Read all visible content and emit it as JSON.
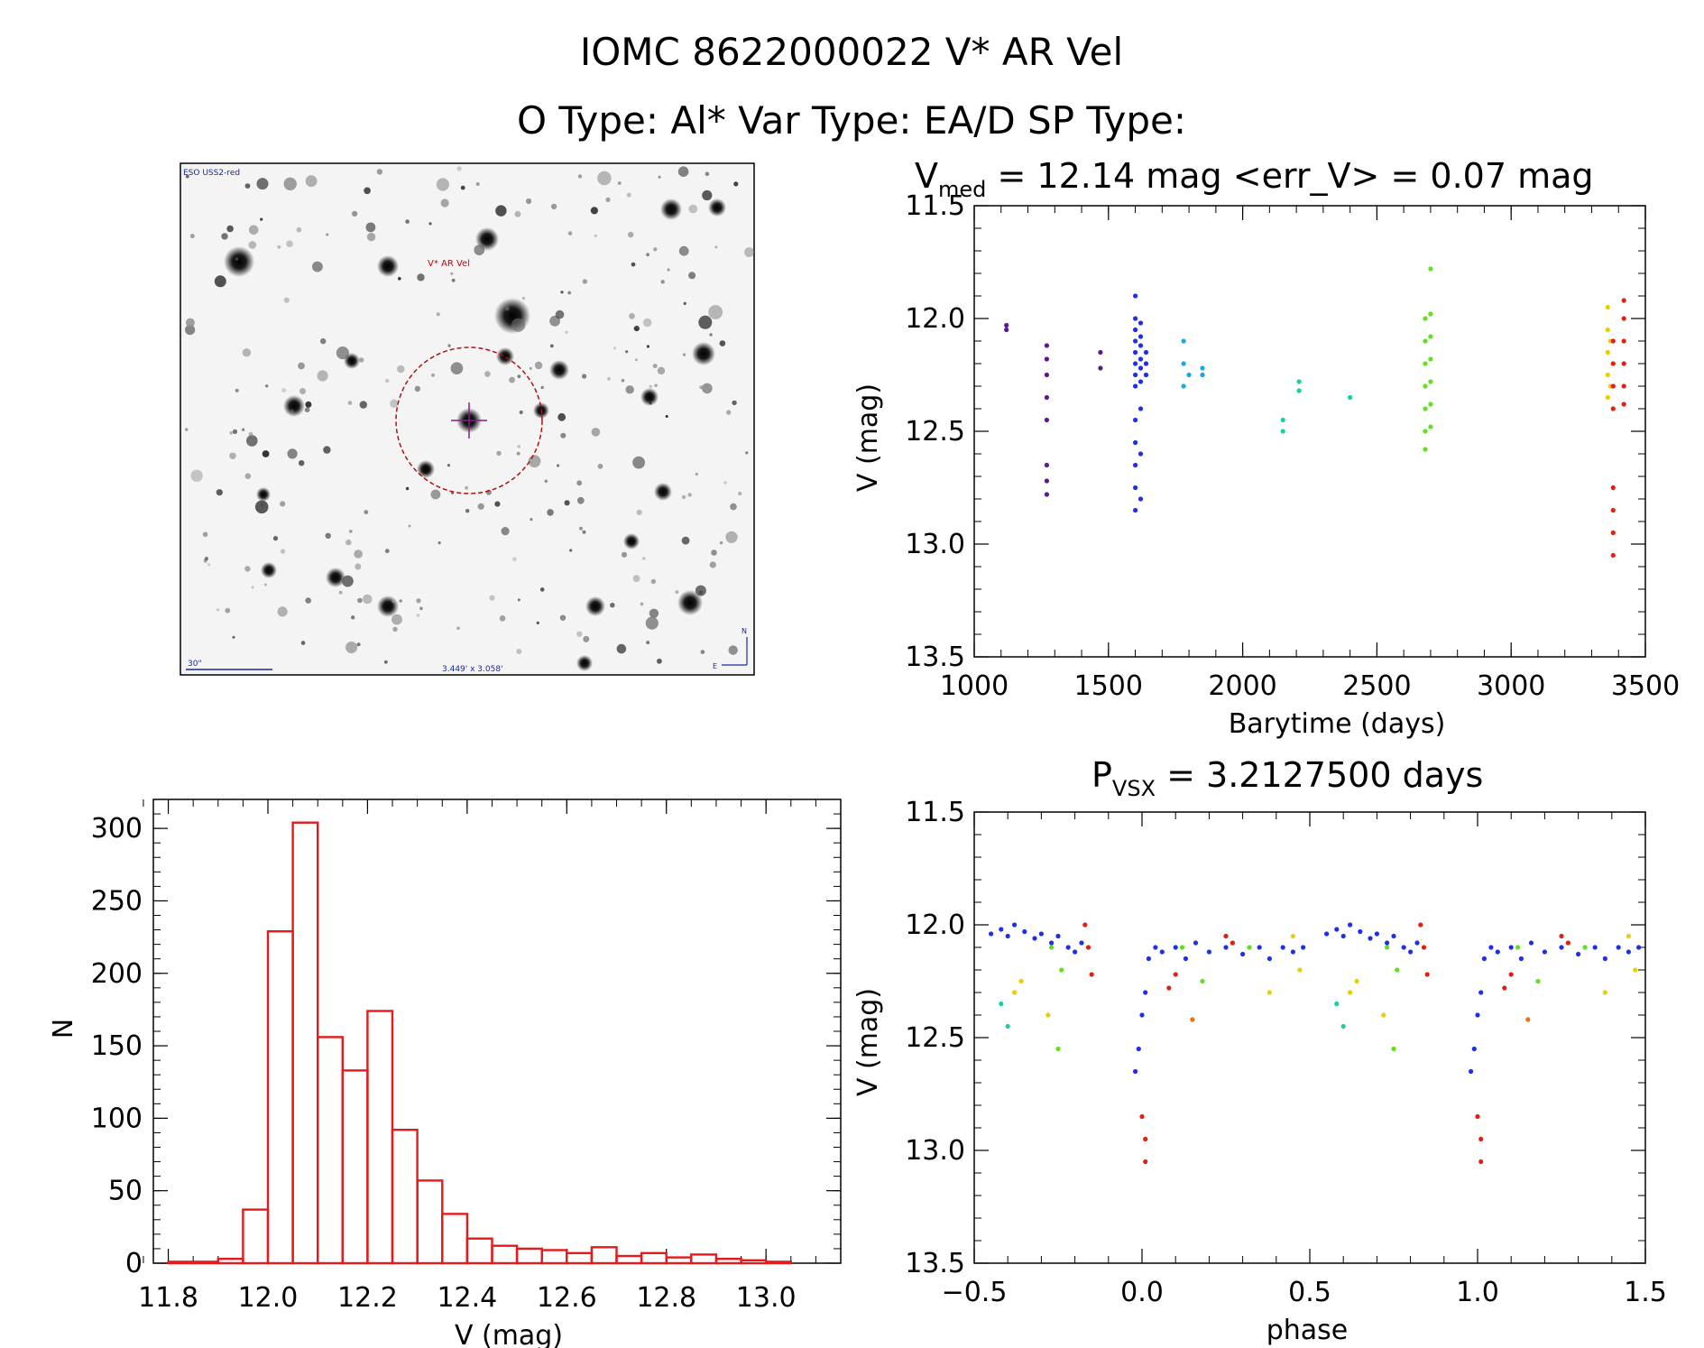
{
  "header": {
    "line1": "IOMC 8622000022    V* AR Vel",
    "line2": "O Type: Al*  Var Type: EA/D  SP Type:"
  },
  "finder": {
    "survey_label": "ESO USS2-red",
    "target_label": "V* AR Vel",
    "scale_label": "30\"",
    "size_label": "3.449' x 3.058'",
    "north_label": "N",
    "east_label": "E"
  },
  "chart_data": [
    {
      "id": "lightcurve",
      "type": "scatter",
      "title_main": "V",
      "title_sub": "med",
      "title_rest": " = 12.14 mag <err_V> = 0.07 mag",
      "xlabel": "Barytime (days)",
      "ylabel": "V (mag)",
      "xlim": [
        1000,
        3500
      ],
      "ylim": [
        11.5,
        13.5
      ],
      "y_inverted": true,
      "xticks": [
        1000,
        1500,
        2000,
        2500,
        3000,
        3500
      ],
      "xtick_labels": [
        "1000",
        "1500",
        "2000",
        "2500",
        "3000",
        "3500"
      ],
      "yticks": [
        11.5,
        12.0,
        12.5,
        13.0,
        13.5
      ],
      "ytick_labels": [
        "11.5",
        "12.0",
        "12.5",
        "13.0",
        "13.5"
      ],
      "series": [
        {
          "name": "season-1",
          "color": "#5a1a8a",
          "points": [
            [
              1120,
              12.03
            ],
            [
              1120,
              12.05
            ],
            [
              1270,
              12.12
            ],
            [
              1270,
              12.18
            ],
            [
              1270,
              12.25
            ],
            [
              1270,
              12.35
            ],
            [
              1270,
              12.45
            ],
            [
              1270,
              12.65
            ],
            [
              1270,
              12.72
            ],
            [
              1270,
              12.78
            ],
            [
              1470,
              12.15
            ],
            [
              1470,
              12.22
            ]
          ]
        },
        {
          "name": "season-2",
          "color": "#1f2ee8",
          "points": [
            [
              1600,
              11.9
            ],
            [
              1600,
              12.0
            ],
            [
              1600,
              12.05
            ],
            [
              1600,
              12.1
            ],
            [
              1600,
              12.15
            ],
            [
              1600,
              12.2
            ],
            [
              1600,
              12.25
            ],
            [
              1600,
              12.3
            ],
            [
              1600,
              12.45
            ],
            [
              1600,
              12.55
            ],
            [
              1600,
              12.65
            ],
            [
              1600,
              12.75
            ],
            [
              1600,
              12.85
            ],
            [
              1620,
              12.02
            ],
            [
              1620,
              12.08
            ],
            [
              1620,
              12.12
            ],
            [
              1620,
              12.18
            ],
            [
              1620,
              12.22
            ],
            [
              1620,
              12.28
            ],
            [
              1620,
              12.4
            ],
            [
              1620,
              12.6
            ],
            [
              1620,
              12.8
            ],
            [
              1640,
              12.15
            ],
            [
              1640,
              12.2
            ],
            [
              1640,
              12.25
            ]
          ]
        },
        {
          "name": "season-3",
          "color": "#1aa8e0",
          "points": [
            [
              1780,
              12.1
            ],
            [
              1780,
              12.2
            ],
            [
              1780,
              12.3
            ],
            [
              1800,
              12.25
            ],
            [
              1850,
              12.22
            ],
            [
              1850,
              12.25
            ]
          ]
        },
        {
          "name": "season-4",
          "color": "#15d0a0",
          "points": [
            [
              2150,
              12.45
            ],
            [
              2150,
              12.5
            ],
            [
              2210,
              12.28
            ],
            [
              2210,
              12.32
            ],
            [
              2400,
              12.35
            ]
          ]
        },
        {
          "name": "season-5",
          "color": "#60e020",
          "points": [
            [
              2680,
              12.0
            ],
            [
              2680,
              12.1
            ],
            [
              2680,
              12.2
            ],
            [
              2680,
              12.3
            ],
            [
              2680,
              12.4
            ],
            [
              2680,
              12.5
            ],
            [
              2680,
              12.58
            ],
            [
              2700,
              11.78
            ],
            [
              2700,
              11.98
            ],
            [
              2700,
              12.08
            ],
            [
              2700,
              12.18
            ],
            [
              2700,
              12.28
            ],
            [
              2700,
              12.38
            ],
            [
              2700,
              12.48
            ]
          ]
        },
        {
          "name": "season-6",
          "color": "#e8d000",
          "points": [
            [
              3360,
              11.95
            ],
            [
              3360,
              12.05
            ],
            [
              3360,
              12.15
            ],
            [
              3360,
              12.25
            ],
            [
              3360,
              12.35
            ],
            [
              3370,
              12.1
            ],
            [
              3370,
              12.3
            ]
          ]
        },
        {
          "name": "season-7",
          "color": "#e02010",
          "points": [
            [
              3380,
              12.1
            ],
            [
              3380,
              12.2
            ],
            [
              3380,
              12.3
            ],
            [
              3380,
              12.4
            ],
            [
              3380,
              12.75
            ],
            [
              3380,
              12.85
            ],
            [
              3380,
              12.95
            ],
            [
              3380,
              13.05
            ],
            [
              3420,
              11.92
            ],
            [
              3420,
              12.0
            ],
            [
              3420,
              12.1
            ],
            [
              3420,
              12.2
            ],
            [
              3420,
              12.3
            ],
            [
              3420,
              12.38
            ]
          ]
        }
      ]
    },
    {
      "id": "histogram",
      "type": "bar",
      "xlabel": "V (mag)",
      "ylabel": "N",
      "xlim": [
        11.77,
        13.15
      ],
      "ylim": [
        0,
        320
      ],
      "bin_width": 0.05,
      "bin_starts": [
        11.8,
        11.85,
        11.9,
        11.95,
        12.0,
        12.05,
        12.1,
        12.15,
        12.2,
        12.25,
        12.3,
        12.35,
        12.4,
        12.45,
        12.5,
        12.55,
        12.6,
        12.65,
        12.7,
        12.75,
        12.8,
        12.85,
        12.9,
        12.95,
        13.0,
        13.05
      ],
      "values": [
        1,
        1,
        3,
        37,
        229,
        304,
        156,
        133,
        174,
        92,
        57,
        34,
        17,
        12,
        10,
        9,
        7,
        11,
        5,
        7,
        4,
        6,
        3,
        2,
        1,
        0
      ],
      "xticks": [
        11.8,
        12.0,
        12.2,
        12.4,
        12.6,
        12.8,
        13.0
      ],
      "xtick_labels": [
        "11.8",
        "12.0",
        "12.2",
        "12.4",
        "12.6",
        "12.8",
        "13.0"
      ],
      "yticks": [
        0,
        50,
        100,
        150,
        200,
        250,
        300
      ],
      "ytick_labels": [
        "0",
        "50",
        "100",
        "150",
        "200",
        "250",
        "300"
      ],
      "color": "#e41a1c"
    },
    {
      "id": "phased",
      "type": "scatter",
      "title_main": "P",
      "title_sub": "VSX",
      "title_rest": " = 3.2127500 days",
      "xlabel": "phase",
      "ylabel": "V (mag)",
      "xlim": [
        -0.5,
        1.5
      ],
      "ylim": [
        11.5,
        13.5
      ],
      "y_inverted": true,
      "xticks": [
        -0.5,
        0.0,
        0.5,
        1.0,
        1.5
      ],
      "xtick_labels": [
        "−0.5",
        "0.0",
        "0.5",
        "1.0",
        "1.5"
      ],
      "yticks": [
        11.5,
        12.0,
        12.5,
        13.0,
        13.5
      ],
      "ytick_labels": [
        "11.5",
        "12.0",
        "12.5",
        "13.0",
        "13.5"
      ],
      "series": [
        {
          "name": "blue",
          "color": "#1f2ee8",
          "points": [
            [
              -0.45,
              12.04
            ],
            [
              -0.42,
              12.02
            ],
            [
              -0.4,
              12.05
            ],
            [
              -0.38,
              12.0
            ],
            [
              -0.35,
              12.03
            ],
            [
              -0.32,
              12.06
            ],
            [
              -0.3,
              12.04
            ],
            [
              -0.27,
              12.08
            ],
            [
              -0.25,
              12.05
            ],
            [
              -0.22,
              12.1
            ],
            [
              -0.2,
              12.12
            ],
            [
              -0.18,
              12.08
            ],
            [
              -0.02,
              12.65
            ],
            [
              -0.01,
              12.55
            ],
            [
              0.0,
              12.4
            ],
            [
              0.01,
              12.3
            ],
            [
              0.02,
              12.15
            ],
            [
              0.04,
              12.1
            ],
            [
              0.06,
              12.12
            ],
            [
              0.1,
              12.1
            ],
            [
              0.13,
              12.15
            ],
            [
              0.16,
              12.08
            ],
            [
              0.2,
              12.12
            ],
            [
              0.25,
              12.1
            ],
            [
              0.3,
              12.13
            ],
            [
              0.35,
              12.1
            ],
            [
              0.38,
              12.15
            ],
            [
              0.42,
              12.1
            ],
            [
              0.45,
              12.12
            ],
            [
              0.48,
              12.1
            ],
            [
              0.55,
              12.04
            ],
            [
              0.58,
              12.02
            ],
            [
              0.6,
              12.05
            ],
            [
              0.62,
              12.0
            ],
            [
              0.65,
              12.03
            ],
            [
              0.68,
              12.06
            ],
            [
              0.7,
              12.04
            ],
            [
              0.73,
              12.08
            ],
            [
              0.75,
              12.05
            ],
            [
              0.78,
              12.1
            ],
            [
              0.8,
              12.12
            ],
            [
              0.82,
              12.08
            ],
            [
              0.98,
              12.65
            ],
            [
              0.99,
              12.55
            ],
            [
              1.0,
              12.4
            ],
            [
              1.01,
              12.3
            ],
            [
              1.02,
              12.15
            ],
            [
              1.04,
              12.1
            ],
            [
              1.06,
              12.12
            ],
            [
              1.1,
              12.1
            ],
            [
              1.13,
              12.15
            ],
            [
              1.16,
              12.08
            ],
            [
              1.2,
              12.12
            ],
            [
              1.25,
              12.1
            ],
            [
              1.3,
              12.13
            ],
            [
              1.35,
              12.1
            ],
            [
              1.38,
              12.15
            ],
            [
              1.42,
              12.1
            ],
            [
              1.45,
              12.12
            ],
            [
              1.48,
              12.1
            ]
          ]
        },
        {
          "name": "red",
          "color": "#e02010",
          "points": [
            [
              -0.17,
              12.0
            ],
            [
              -0.16,
              12.1
            ],
            [
              -0.15,
              12.22
            ],
            [
              0.0,
              12.85
            ],
            [
              0.01,
              12.95
            ],
            [
              0.01,
              13.05
            ],
            [
              0.08,
              12.28
            ],
            [
              0.1,
              12.22
            ],
            [
              0.25,
              12.05
            ],
            [
              0.27,
              12.08
            ],
            [
              0.83,
              12.0
            ],
            [
              0.84,
              12.1
            ],
            [
              0.85,
              12.22
            ],
            [
              1.0,
              12.85
            ],
            [
              1.01,
              12.95
            ],
            [
              1.01,
              13.05
            ],
            [
              1.08,
              12.28
            ],
            [
              1.1,
              12.22
            ],
            [
              1.25,
              12.05
            ],
            [
              1.27,
              12.08
            ]
          ]
        },
        {
          "name": "green",
          "color": "#60e020",
          "points": [
            [
              -0.27,
              12.1
            ],
            [
              -0.25,
              12.55
            ],
            [
              -0.24,
              12.2
            ],
            [
              0.12,
              12.1
            ],
            [
              0.18,
              12.25
            ],
            [
              0.32,
              12.1
            ],
            [
              0.73,
              12.1
            ],
            [
              0.75,
              12.55
            ],
            [
              0.76,
              12.2
            ],
            [
              1.12,
              12.1
            ],
            [
              1.18,
              12.25
            ],
            [
              1.32,
              12.1
            ]
          ]
        },
        {
          "name": "yellow",
          "color": "#e8d000",
          "points": [
            [
              -0.38,
              12.3
            ],
            [
              -0.36,
              12.25
            ],
            [
              -0.28,
              12.4
            ],
            [
              0.38,
              12.3
            ],
            [
              0.45,
              12.05
            ],
            [
              0.47,
              12.2
            ],
            [
              0.62,
              12.3
            ],
            [
              0.64,
              12.25
            ],
            [
              0.72,
              12.4
            ],
            [
              1.38,
              12.3
            ],
            [
              1.45,
              12.05
            ],
            [
              1.47,
              12.2
            ]
          ]
        },
        {
          "name": "cyan",
          "color": "#15d0a0",
          "points": [
            [
              -0.4,
              12.45
            ],
            [
              -0.42,
              12.35
            ],
            [
              0.6,
              12.45
            ],
            [
              0.58,
              12.35
            ]
          ]
        },
        {
          "name": "orange",
          "color": "#f07010",
          "points": [
            [
              0.15,
              12.42
            ],
            [
              1.15,
              12.42
            ]
          ]
        }
      ]
    }
  ]
}
